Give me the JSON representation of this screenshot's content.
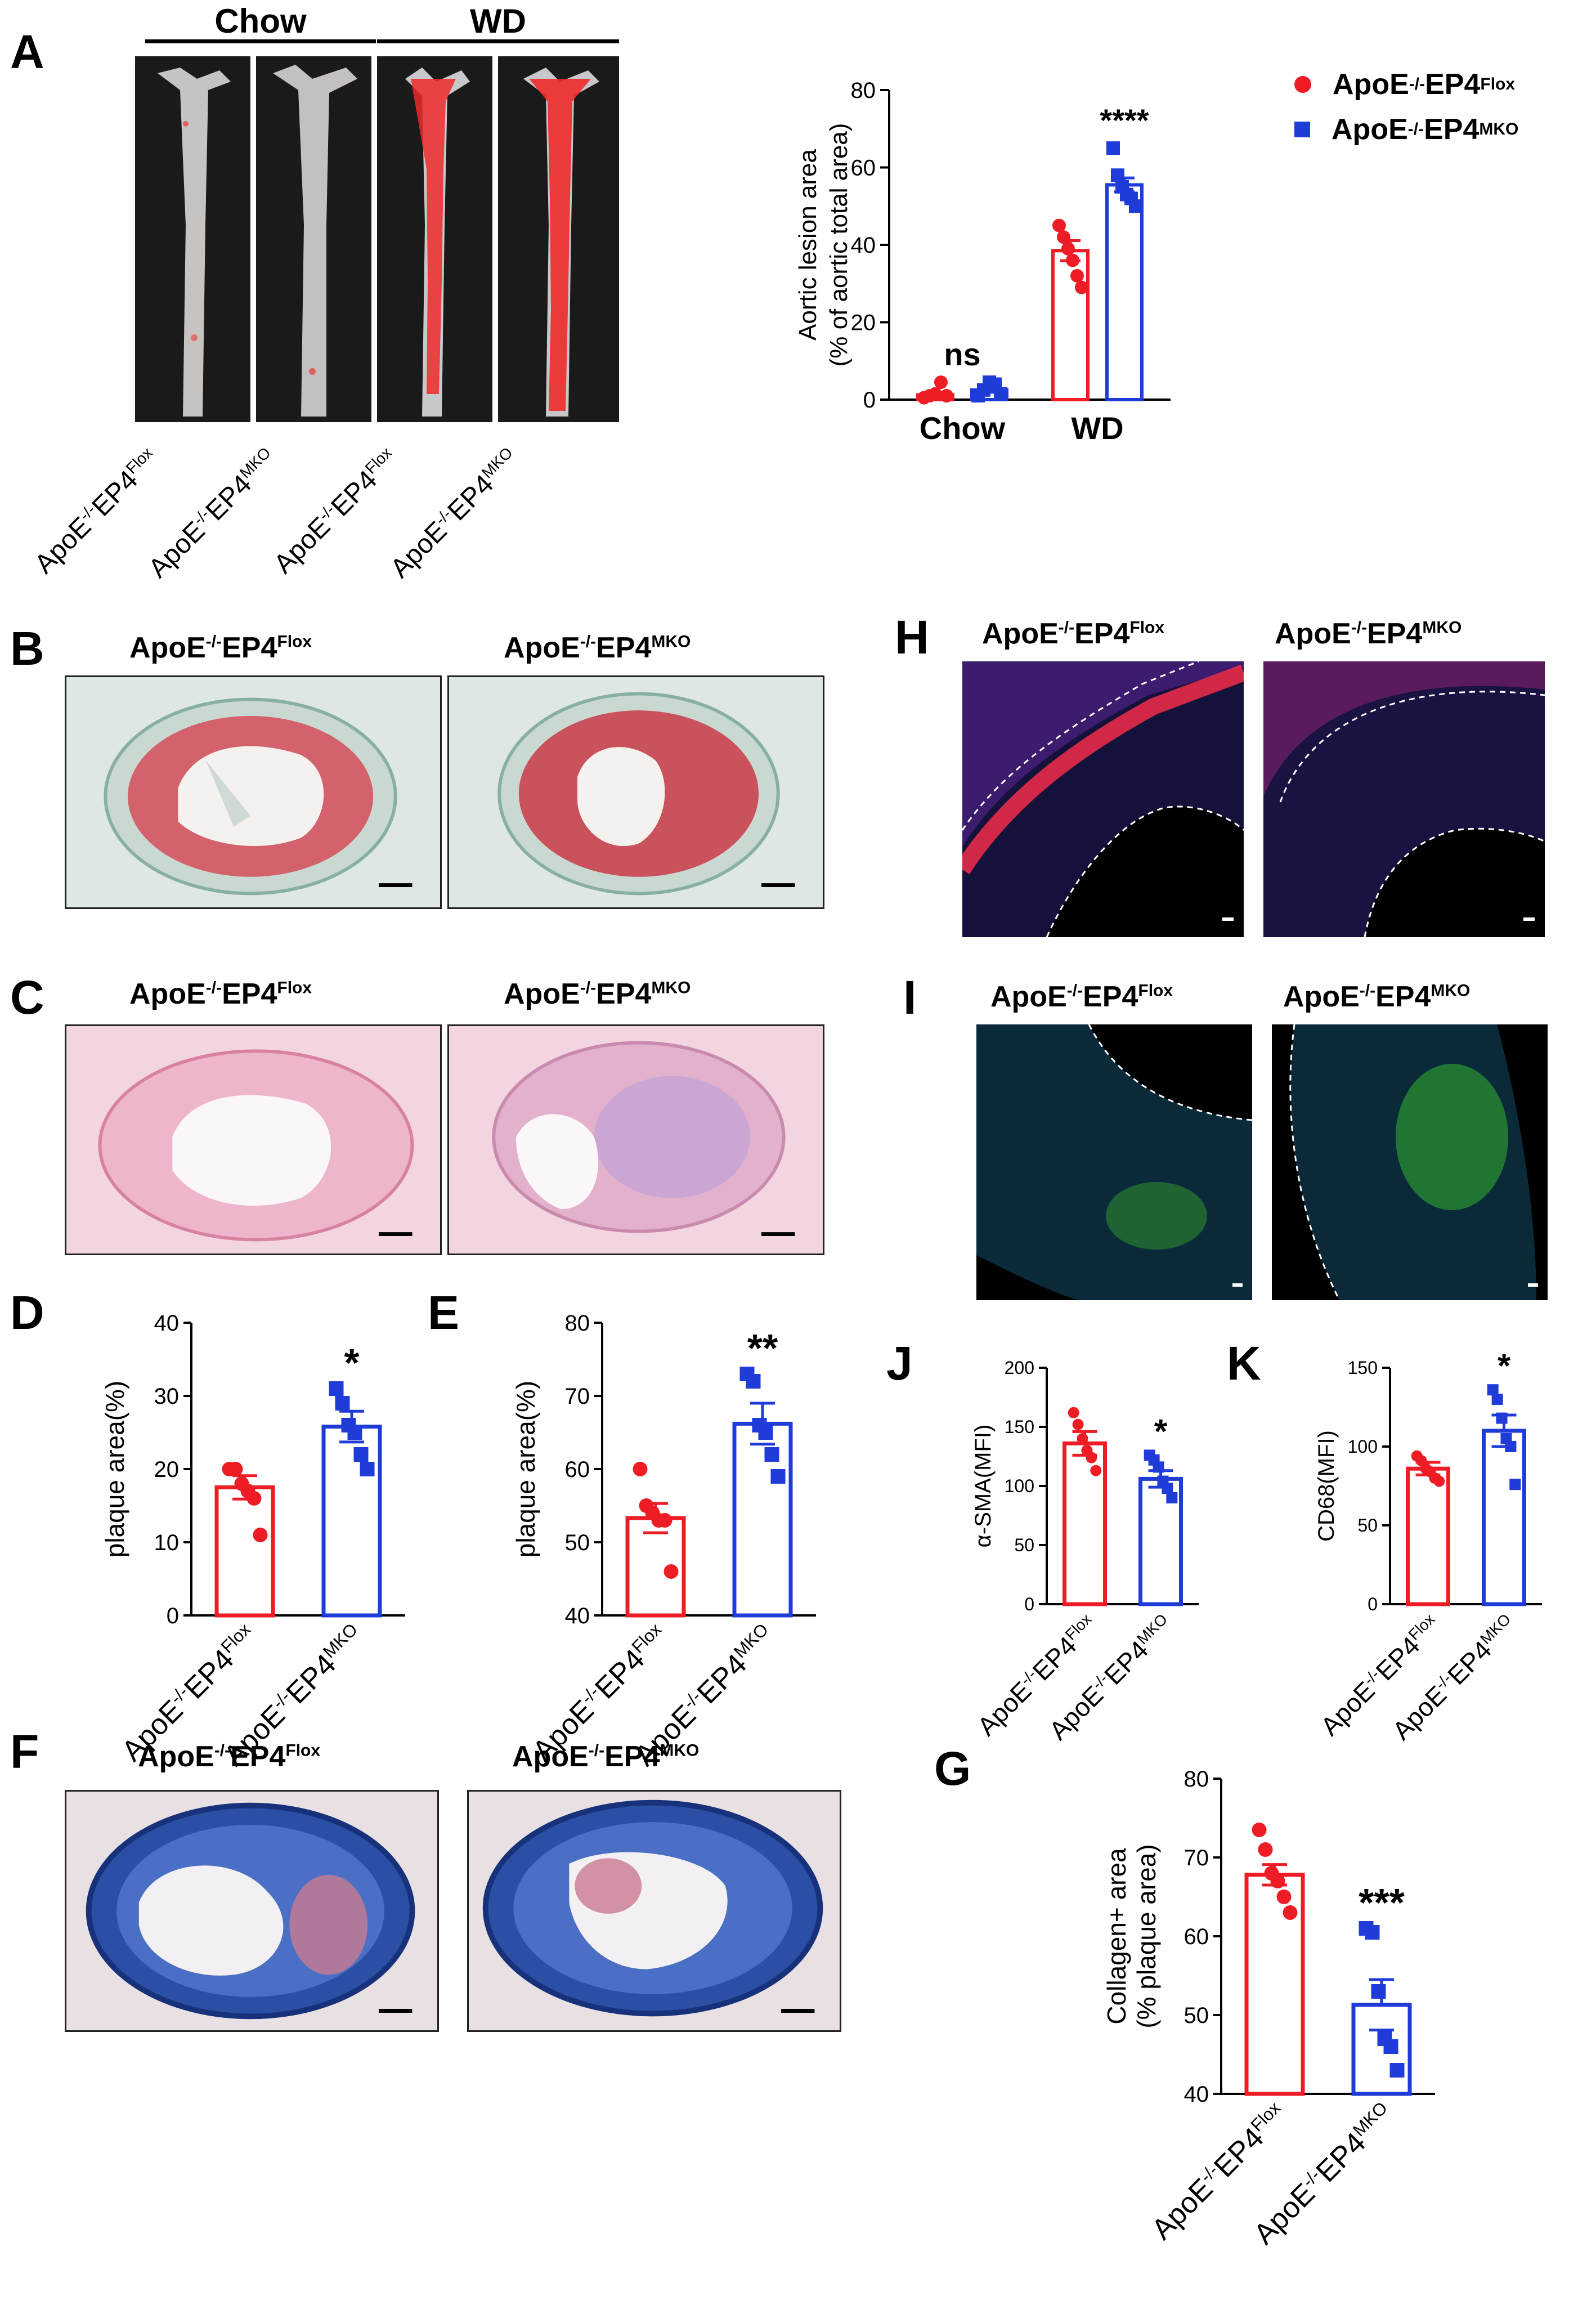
{
  "panels": {
    "A": "A",
    "B": "B",
    "C": "C",
    "D": "D",
    "E": "E",
    "F": "F",
    "G": "G",
    "H": "H",
    "I": "I",
    "J": "J",
    "K": "K"
  },
  "groups": {
    "flox_base": "ApoE",
    "flox_sup1": "-/-",
    "flox_mid": "EP4",
    "flox_sup2": "Flox",
    "mko_sup2": "MKO"
  },
  "panel_a": {
    "header_chow": "Chow",
    "header_wd": "WD"
  },
  "legend": {
    "flox": "ApoE-/-EP4Flox",
    "mko": "ApoE-/-EP4MKO"
  },
  "colors": {
    "flox": "#ee1c25",
    "mko": "#1f3bd8"
  },
  "chart_data": [
    {
      "id": "A",
      "type": "bar",
      "categories": [
        "Chow",
        "WD"
      ],
      "ylabel": "Aortic lesion area",
      "ylabel2": "(% of aortic total area)",
      "ylim": [
        0,
        80
      ],
      "yticks": [
        0,
        20,
        40,
        60,
        80
      ],
      "series": [
        {
          "name": "ApoE-/-EP4Flox",
          "values": [
            1.2,
            38.5
          ],
          "sem": [
            0.5,
            2.6
          ],
          "points": [
            [
              0.5,
              1.0,
              1.5,
              4.5,
              1.0
            ],
            [
              45.0,
              42.0,
              39.0,
              36.0,
              32.0,
              29.0
            ]
          ]
        },
        {
          "name": "ApoE-/-EP4MKO",
          "values": [
            2.5,
            55.5
          ],
          "sem": [
            0.6,
            1.8
          ],
          "points": [
            [
              1.0,
              2.5,
              4.5,
              4.0,
              1.5
            ],
            [
              65.0,
              58.0,
              55.0,
              53.0,
              52.0,
              50.0
            ]
          ]
        }
      ],
      "annotations": [
        "ns",
        "****"
      ]
    },
    {
      "id": "D",
      "type": "bar",
      "categories": [
        "ApoE-/-EP4Flox",
        "ApoE-/-EP4MKO"
      ],
      "ylabel": "plaque area(%)",
      "ylim": [
        0,
        40
      ],
      "yticks": [
        0,
        10,
        20,
        30,
        40
      ],
      "values": [
        17.5,
        25.8
      ],
      "sem": [
        1.6,
        2.1
      ],
      "points": [
        [
          20,
          20,
          18,
          17,
          16,
          11
        ],
        [
          31,
          29,
          26,
          25,
          22,
          20
        ]
      ],
      "annotations": [
        "",
        "*"
      ]
    },
    {
      "id": "E",
      "type": "bar",
      "categories": [
        "ApoE-/-EP4Flox",
        "ApoE-/-EP4MKO"
      ],
      "ylabel": "plaque area(%)",
      "ylim": [
        40,
        80
      ],
      "yticks": [
        40,
        50,
        60,
        70,
        80
      ],
      "values": [
        53.3,
        66.2
      ],
      "sem": [
        2.0,
        2.8
      ],
      "points": [
        [
          60,
          55,
          54,
          53,
          53,
          46
        ],
        [
          73,
          72,
          66,
          65,
          62,
          59
        ]
      ],
      "annotations": [
        "",
        "**"
      ]
    },
    {
      "id": "J",
      "type": "bar",
      "categories": [
        "ApoE-/-EP4Flox",
        "ApoE-/-EP4MKO"
      ],
      "ylabel": "α-SMA(MFI)",
      "ylim": [
        0,
        200
      ],
      "yticks": [
        0,
        50,
        100,
        150,
        200
      ],
      "values": [
        136,
        106
      ],
      "sem": [
        10,
        7
      ],
      "points": [
        [
          162,
          152,
          140,
          130,
          124,
          113
        ],
        [
          126,
          122,
          116,
          104,
          98,
          90
        ]
      ],
      "annotations": [
        "",
        "*"
      ]
    },
    {
      "id": "K",
      "type": "bar",
      "categories": [
        "ApoE-/-EP4Flox",
        "ApoE-/-EP4MKO"
      ],
      "ylabel": "CD68(MFI)",
      "ylim": [
        0,
        150
      ],
      "yticks": [
        0,
        50,
        100,
        150
      ],
      "values": [
        86,
        110
      ],
      "sem": [
        4,
        10
      ],
      "points": [
        [
          94,
          91,
          86,
          84,
          80,
          78
        ],
        [
          136,
          130,
          118,
          105,
          100,
          76
        ]
      ],
      "annotations": [
        "",
        "*"
      ]
    },
    {
      "id": "G",
      "type": "bar",
      "categories": [
        "ApoE-/-EP4Flox",
        "ApoE-/-EP4MKO"
      ],
      "ylabel": "Collagen+ area",
      "ylabel2": "(% plaque area)",
      "ylim": [
        40,
        80
      ],
      "yticks": [
        40,
        50,
        60,
        70,
        80
      ],
      "values": [
        67.8,
        51.3
      ],
      "sem": [
        1.3,
        3.2
      ],
      "points": [
        [
          73.5,
          71,
          68,
          67,
          65,
          63
        ],
        [
          61,
          60.5,
          53,
          47,
          46,
          43
        ]
      ],
      "annotations": [
        "",
        "***"
      ]
    }
  ]
}
